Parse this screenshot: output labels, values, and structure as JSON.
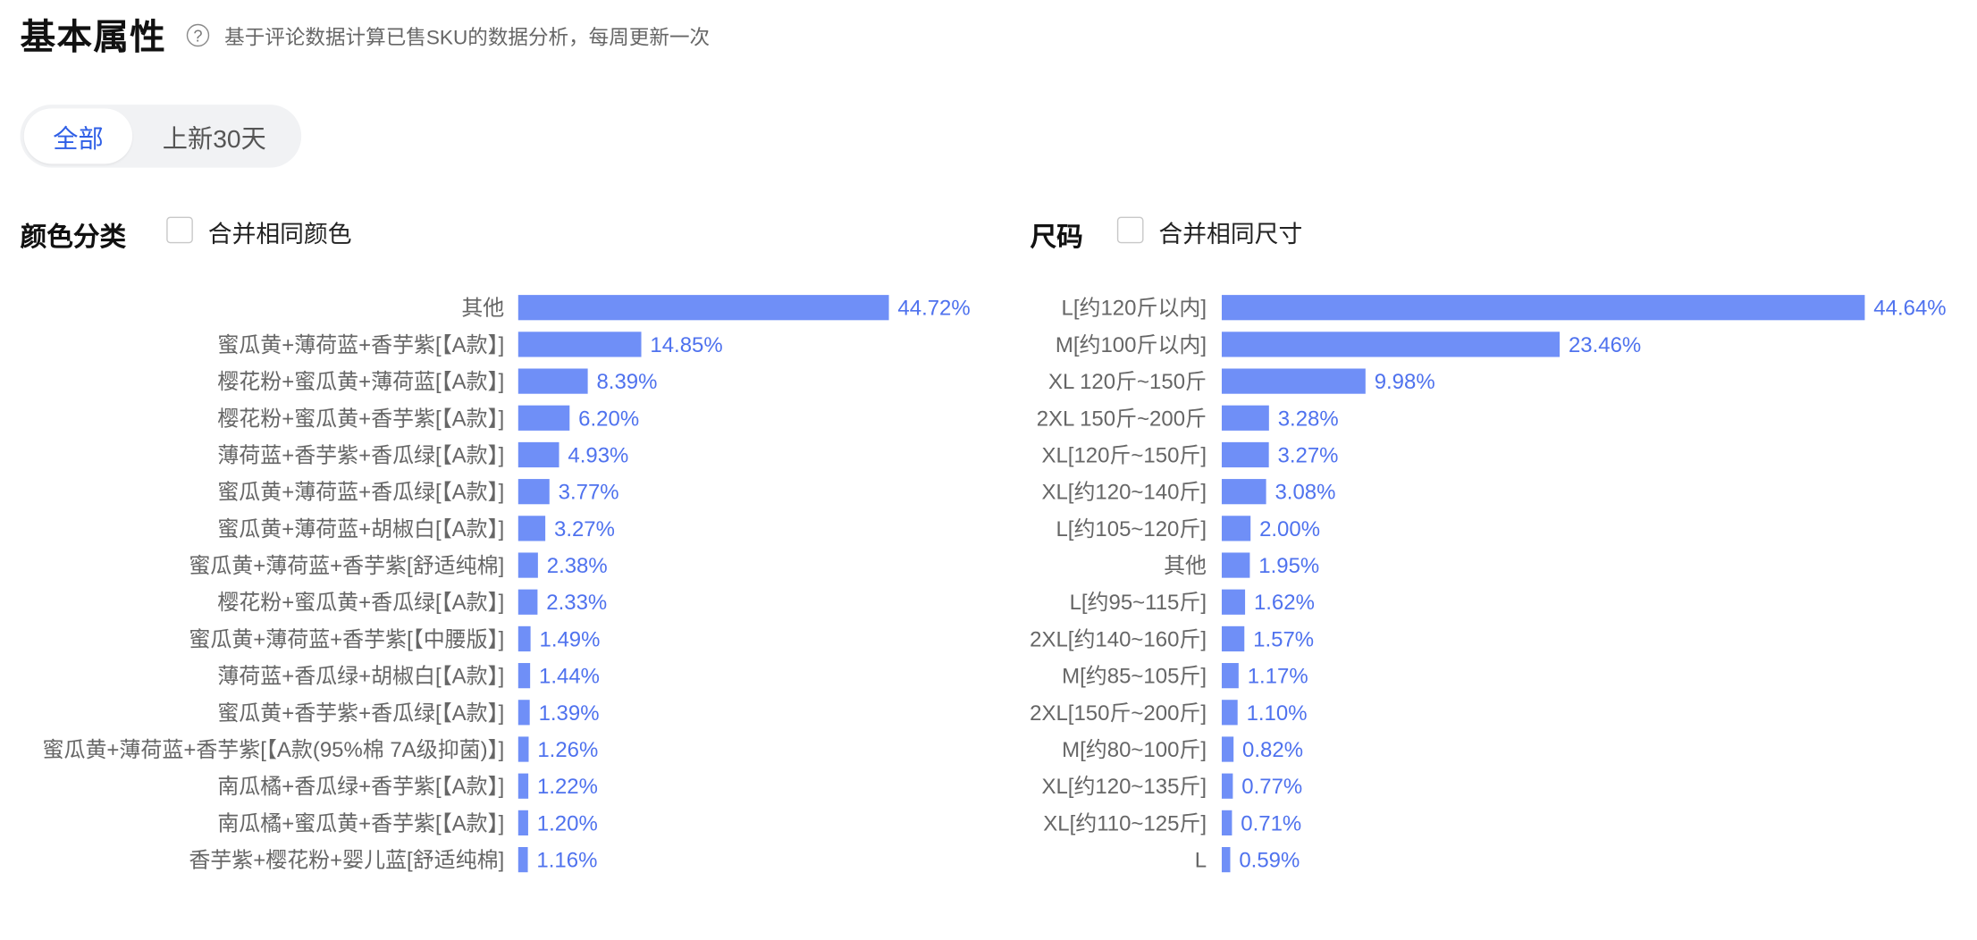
{
  "header": {
    "title": "基本属性",
    "help_icon": "question-circle-icon",
    "subtitle": "基于评论数据计算已售SKU的数据分析，每周更新一次"
  },
  "tabs": [
    {
      "label": "全部",
      "active": true
    },
    {
      "label": "上新30天",
      "active": false
    }
  ],
  "colors": {
    "bar": "#6f8ff7",
    "value_text": "#4f72ee",
    "category_text": "#666666",
    "tab_active": "#2f5fe6"
  },
  "color_section": {
    "title": "颜色分类",
    "checkbox_label": "合并相同颜色",
    "checked": false
  },
  "size_section": {
    "title": "尺码",
    "checkbox_label": "合并相同尺寸",
    "checked": false
  },
  "chart_data": [
    {
      "type": "bar",
      "orientation": "horizontal",
      "title": "颜色分类",
      "unit": "%",
      "categories": [
        "其他",
        "蜜瓜黄+薄荷蓝+香芋紫[【A款】]",
        "樱花粉+蜜瓜黄+薄荷蓝[【A款】]",
        "樱花粉+蜜瓜黄+香芋紫[【A款】]",
        "薄荷蓝+香芋紫+香瓜绿[【A款】]",
        "蜜瓜黄+薄荷蓝+香瓜绿[【A款】]",
        "蜜瓜黄+薄荷蓝+胡椒白[【A款】]",
        "蜜瓜黄+薄荷蓝+香芋紫[舒适纯棉]",
        "樱花粉+蜜瓜黄+香瓜绿[【A款】]",
        "蜜瓜黄+薄荷蓝+香芋紫[【中腰版】]",
        "薄荷蓝+香瓜绿+胡椒白[【A款】]",
        "蜜瓜黄+香芋紫+香瓜绿[【A款】]",
        "蜜瓜黄+薄荷蓝+香芋紫[【A款(95%棉 7A级抑菌)】]",
        "南瓜橘+香瓜绿+香芋紫[【A款】]",
        "南瓜橘+蜜瓜黄+香芋紫[【A款】]",
        "香芋紫+樱花粉+婴儿蓝[舒适纯棉]"
      ],
      "values": [
        44.72,
        14.85,
        8.39,
        6.2,
        4.93,
        3.77,
        3.27,
        2.38,
        2.33,
        1.49,
        1.44,
        1.39,
        1.26,
        1.22,
        1.2,
        1.16
      ],
      "value_labels": [
        "44.72%",
        "14.85%",
        "8.39%",
        "6.20%",
        "4.93%",
        "3.77%",
        "3.27%",
        "2.38%",
        "2.33%",
        "1.49%",
        "1.44%",
        "1.39%",
        "1.26%",
        "1.22%",
        "1.20%",
        "1.16%"
      ],
      "xlim": [
        0,
        44.72
      ],
      "grid": false,
      "legend": "none"
    },
    {
      "type": "bar",
      "orientation": "horizontal",
      "title": "尺码",
      "unit": "%",
      "categories": [
        "L[约120斤以内]",
        "M[约100斤以内]",
        "XL 120斤~150斤",
        "2XL 150斤~200斤",
        "XL[120斤~150斤]",
        "XL[约120~140斤]",
        "L[约105~120斤]",
        "其他",
        "L[约95~115斤]",
        "2XL[约140~160斤]",
        "M[约85~105斤]",
        "2XL[150斤~200斤]",
        "M[约80~100斤]",
        "XL[约120~135斤]",
        "XL[约110~125斤]",
        "L"
      ],
      "values": [
        44.64,
        23.46,
        9.98,
        3.28,
        3.27,
        3.08,
        2.0,
        1.95,
        1.62,
        1.57,
        1.17,
        1.1,
        0.82,
        0.77,
        0.71,
        0.59
      ],
      "value_labels": [
        "44.64%",
        "23.46%",
        "9.98%",
        "3.28%",
        "3.27%",
        "3.08%",
        "2.00%",
        "1.95%",
        "1.62%",
        "1.57%",
        "1.17%",
        "1.10%",
        "0.82%",
        "0.77%",
        "0.71%",
        "0.59%"
      ],
      "xlim": [
        0,
        44.64
      ],
      "grid": false,
      "legend": "none"
    }
  ]
}
